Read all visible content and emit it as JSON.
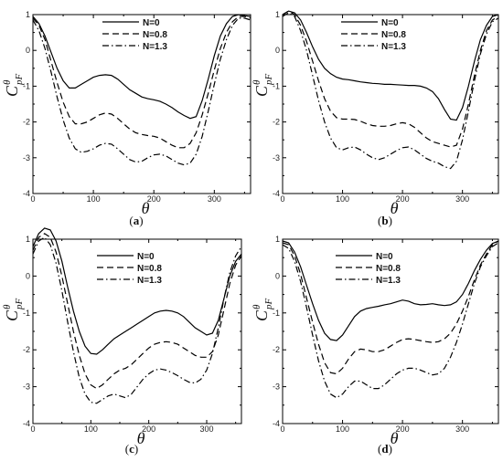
{
  "chart_data": [
    {
      "type": "line",
      "panel_label": "a",
      "xlabel": "θ",
      "ylabel": "C",
      "ylabel_superscript": "θ",
      "ylabel_subscript": "pF",
      "xlim": [
        0,
        360
      ],
      "ylim": [
        -4,
        1
      ],
      "xticks": [
        "0",
        "100",
        "200",
        "300"
      ],
      "yticks": [
        "1",
        "0",
        "-1",
        "-2",
        "-3",
        "-4"
      ],
      "legend_position": "top-center",
      "series": [
        {
          "name": "N=0",
          "style": "solid",
          "x": [
            0,
            10,
            20,
            30,
            40,
            50,
            60,
            70,
            80,
            90,
            100,
            110,
            120,
            130,
            140,
            150,
            160,
            170,
            180,
            190,
            200,
            210,
            220,
            230,
            240,
            250,
            260,
            270,
            280,
            290,
            300,
            310,
            320,
            330,
            340,
            350,
            360
          ],
          "y": [
            0.95,
            0.75,
            0.4,
            -0.05,
            -0.5,
            -0.85,
            -1.05,
            -1.05,
            -0.95,
            -0.85,
            -0.75,
            -0.7,
            -0.68,
            -0.7,
            -0.8,
            -0.95,
            -1.1,
            -1.2,
            -1.3,
            -1.35,
            -1.38,
            -1.42,
            -1.5,
            -1.6,
            -1.72,
            -1.82,
            -1.9,
            -1.85,
            -1.4,
            -0.8,
            -0.15,
            0.4,
            0.75,
            0.95,
            1.0,
            0.97,
            0.95
          ]
        },
        {
          "name": "N=0.8",
          "style": "dashed",
          "x": [
            0,
            10,
            20,
            30,
            40,
            50,
            60,
            70,
            80,
            90,
            100,
            110,
            120,
            130,
            140,
            150,
            160,
            170,
            180,
            190,
            200,
            210,
            220,
            230,
            240,
            250,
            260,
            270,
            280,
            290,
            300,
            310,
            320,
            330,
            340,
            350,
            360
          ],
          "y": [
            0.9,
            0.7,
            0.3,
            -0.3,
            -0.9,
            -1.45,
            -1.85,
            -2.05,
            -2.05,
            -2.0,
            -1.9,
            -1.8,
            -1.75,
            -1.78,
            -1.9,
            -2.05,
            -2.2,
            -2.3,
            -2.35,
            -2.38,
            -2.4,
            -2.45,
            -2.55,
            -2.65,
            -2.72,
            -2.72,
            -2.6,
            -2.3,
            -1.8,
            -1.2,
            -0.55,
            0.05,
            0.5,
            0.8,
            0.95,
            0.95,
            0.9
          ]
        },
        {
          "name": "N=1.3",
          "style": "dash-dot",
          "x": [
            0,
            10,
            20,
            30,
            40,
            50,
            60,
            70,
            80,
            90,
            100,
            110,
            120,
            130,
            140,
            150,
            160,
            170,
            180,
            190,
            200,
            210,
            220,
            230,
            240,
            250,
            260,
            270,
            280,
            290,
            300,
            310,
            320,
            330,
            340,
            350,
            360
          ],
          "y": [
            0.85,
            0.55,
            0.05,
            -0.6,
            -1.3,
            -1.95,
            -2.45,
            -2.75,
            -2.85,
            -2.82,
            -2.75,
            -2.65,
            -2.6,
            -2.62,
            -2.75,
            -2.9,
            -3.05,
            -3.12,
            -3.1,
            -3.0,
            -2.92,
            -2.9,
            -2.95,
            -3.05,
            -3.15,
            -3.2,
            -3.15,
            -2.9,
            -2.4,
            -1.7,
            -0.95,
            -0.25,
            0.3,
            0.7,
            0.9,
            0.9,
            0.85
          ]
        }
      ]
    },
    {
      "type": "line",
      "panel_label": "b",
      "xlabel": "θ",
      "ylabel": "C",
      "ylabel_superscript": "θ",
      "ylabel_subscript": "pF",
      "xlim": [
        0,
        360
      ],
      "ylim": [
        -4,
        1
      ],
      "xticks": [
        "0",
        "100",
        "200",
        "300"
      ],
      "yticks": [
        "1",
        "0",
        "-1",
        "-2",
        "-3",
        "-4"
      ],
      "legend_position": "top-right",
      "series": [
        {
          "name": "N=0",
          "style": "solid",
          "x": [
            0,
            10,
            20,
            30,
            40,
            50,
            60,
            70,
            80,
            90,
            100,
            110,
            120,
            130,
            140,
            150,
            160,
            170,
            180,
            190,
            200,
            210,
            220,
            230,
            240,
            250,
            260,
            270,
            280,
            290,
            300,
            310,
            320,
            330,
            340,
            350,
            360
          ],
          "y": [
            1.0,
            1.1,
            1.05,
            0.85,
            0.5,
            0.1,
            -0.25,
            -0.5,
            -0.65,
            -0.75,
            -0.8,
            -0.82,
            -0.85,
            -0.88,
            -0.9,
            -0.92,
            -0.93,
            -0.95,
            -0.95,
            -0.96,
            -0.97,
            -0.98,
            -0.98,
            -1.0,
            -1.05,
            -1.15,
            -1.35,
            -1.65,
            -1.92,
            -1.95,
            -1.6,
            -1.0,
            -0.3,
            0.3,
            0.7,
            0.95,
            1.0
          ]
        },
        {
          "name": "N=0.8",
          "style": "dashed",
          "x": [
            0,
            10,
            20,
            30,
            40,
            50,
            60,
            70,
            80,
            90,
            100,
            110,
            120,
            130,
            140,
            150,
            160,
            170,
            180,
            190,
            200,
            210,
            220,
            230,
            240,
            250,
            260,
            270,
            280,
            290,
            300,
            310,
            320,
            330,
            340,
            350,
            360
          ],
          "y": [
            1.0,
            1.1,
            1.0,
            0.7,
            0.25,
            -0.3,
            -0.85,
            -1.35,
            -1.7,
            -1.88,
            -1.92,
            -1.92,
            -1.93,
            -1.98,
            -2.05,
            -2.1,
            -2.12,
            -2.12,
            -2.1,
            -2.05,
            -2.02,
            -2.05,
            -2.15,
            -2.3,
            -2.45,
            -2.55,
            -2.6,
            -2.65,
            -2.7,
            -2.65,
            -2.2,
            -1.5,
            -0.7,
            0.0,
            0.55,
            0.85,
            0.95
          ]
        },
        {
          "name": "N=1.3",
          "style": "dash-dot",
          "x": [
            0,
            10,
            20,
            30,
            40,
            50,
            60,
            70,
            80,
            90,
            100,
            110,
            120,
            130,
            140,
            150,
            160,
            170,
            180,
            190,
            200,
            210,
            220,
            230,
            240,
            250,
            260,
            270,
            280,
            290,
            300,
            310,
            320,
            330,
            340,
            350,
            360
          ],
          "y": [
            0.95,
            1.05,
            0.95,
            0.55,
            0.0,
            -0.7,
            -1.4,
            -2.0,
            -2.45,
            -2.72,
            -2.78,
            -2.72,
            -2.7,
            -2.78,
            -2.9,
            -3.0,
            -3.05,
            -3.0,
            -2.9,
            -2.8,
            -2.72,
            -2.7,
            -2.78,
            -2.9,
            -3.02,
            -3.1,
            -3.15,
            -3.25,
            -3.3,
            -3.1,
            -2.5,
            -1.7,
            -0.85,
            -0.1,
            0.45,
            0.8,
            0.9
          ]
        }
      ]
    },
    {
      "type": "line",
      "panel_label": "c",
      "xlabel": "θ",
      "ylabel": "C",
      "ylabel_superscript": "θ",
      "ylabel_subscript": "pF",
      "xlim": [
        0,
        360
      ],
      "ylim": [
        -4,
        1
      ],
      "xticks": [
        "0",
        "100",
        "200",
        "300"
      ],
      "yticks": [
        "1",
        "0",
        "-1",
        "-2",
        "-3",
        "-4"
      ],
      "legend_position": "top-right",
      "series": [
        {
          "name": "N=0",
          "style": "solid",
          "x": [
            0,
            10,
            20,
            30,
            40,
            50,
            60,
            70,
            80,
            90,
            100,
            110,
            120,
            130,
            140,
            150,
            160,
            170,
            180,
            190,
            200,
            210,
            220,
            230,
            240,
            250,
            260,
            270,
            280,
            290,
            300,
            310,
            320,
            330,
            340,
            350,
            360
          ],
          "y": [
            0.8,
            1.15,
            1.3,
            1.25,
            0.95,
            0.4,
            -0.3,
            -0.95,
            -1.5,
            -1.9,
            -2.1,
            -2.12,
            -2.0,
            -1.85,
            -1.7,
            -1.6,
            -1.5,
            -1.4,
            -1.3,
            -1.2,
            -1.1,
            -1.0,
            -0.95,
            -0.93,
            -0.95,
            -1.0,
            -1.1,
            -1.25,
            -1.4,
            -1.5,
            -1.6,
            -1.55,
            -1.2,
            -0.6,
            0.0,
            0.4,
            0.6
          ]
        },
        {
          "name": "N=0.8",
          "style": "dashed",
          "x": [
            0,
            10,
            20,
            30,
            40,
            50,
            60,
            70,
            80,
            90,
            100,
            110,
            120,
            130,
            140,
            150,
            160,
            170,
            180,
            190,
            200,
            210,
            220,
            230,
            240,
            250,
            260,
            270,
            280,
            290,
            300,
            310,
            320,
            330,
            340,
            350,
            360
          ],
          "y": [
            0.7,
            1.05,
            1.15,
            1.05,
            0.65,
            0.0,
            -0.75,
            -1.5,
            -2.15,
            -2.65,
            -2.95,
            -3.05,
            -2.95,
            -2.8,
            -2.65,
            -2.55,
            -2.5,
            -2.4,
            -2.25,
            -2.1,
            -1.95,
            -1.85,
            -1.8,
            -1.78,
            -1.8,
            -1.85,
            -1.95,
            -2.05,
            -2.15,
            -2.2,
            -2.2,
            -2.05,
            -1.6,
            -0.9,
            -0.2,
            0.3,
            0.55
          ]
        },
        {
          "name": "N=1.3",
          "style": "dash-dot",
          "x": [
            0,
            10,
            20,
            30,
            40,
            50,
            60,
            70,
            80,
            90,
            100,
            110,
            120,
            130,
            140,
            150,
            160,
            170,
            180,
            190,
            200,
            210,
            220,
            230,
            240,
            250,
            260,
            270,
            280,
            290,
            300,
            310,
            320,
            330,
            340,
            350,
            360
          ],
          "y": [
            0.6,
            0.95,
            1.05,
            0.85,
            0.35,
            -0.4,
            -1.25,
            -2.05,
            -2.75,
            -3.2,
            -3.42,
            -3.45,
            -3.35,
            -3.25,
            -3.2,
            -3.25,
            -3.3,
            -3.2,
            -3.0,
            -2.8,
            -2.65,
            -2.55,
            -2.52,
            -2.55,
            -2.62,
            -2.7,
            -2.8,
            -2.88,
            -2.9,
            -2.8,
            -2.55,
            -2.1,
            -1.4,
            -0.6,
            0.1,
            0.55,
            0.8
          ]
        }
      ]
    },
    {
      "type": "line",
      "panel_label": "d",
      "xlabel": "θ",
      "ylabel": "C",
      "ylabel_superscript": "θ",
      "ylabel_subscript": "pF",
      "xlim": [
        0,
        360
      ],
      "ylim": [
        -4,
        1
      ],
      "xticks": [
        "0",
        "100",
        "200",
        "300"
      ],
      "yticks": [
        "1",
        "0",
        "-1",
        "-2",
        "-3",
        "-4"
      ],
      "legend_position": "top-center",
      "series": [
        {
          "name": "N=0",
          "style": "solid",
          "x": [
            0,
            10,
            20,
            30,
            40,
            50,
            60,
            70,
            80,
            90,
            100,
            110,
            120,
            130,
            140,
            150,
            160,
            170,
            180,
            190,
            200,
            210,
            220,
            230,
            240,
            250,
            260,
            270,
            280,
            290,
            300,
            310,
            320,
            330,
            340,
            350,
            360
          ],
          "y": [
            0.95,
            0.9,
            0.65,
            0.25,
            -0.25,
            -0.75,
            -1.2,
            -1.55,
            -1.72,
            -1.75,
            -1.6,
            -1.35,
            -1.1,
            -0.95,
            -0.88,
            -0.85,
            -0.82,
            -0.78,
            -0.75,
            -0.7,
            -0.65,
            -0.68,
            -0.75,
            -0.78,
            -0.77,
            -0.75,
            -0.78,
            -0.8,
            -0.78,
            -0.7,
            -0.5,
            -0.2,
            0.15,
            0.45,
            0.7,
            0.88,
            0.95
          ]
        },
        {
          "name": "N=0.8",
          "style": "dashed",
          "x": [
            0,
            10,
            20,
            30,
            40,
            50,
            60,
            70,
            80,
            90,
            100,
            110,
            120,
            130,
            140,
            150,
            160,
            170,
            180,
            190,
            200,
            210,
            220,
            230,
            240,
            250,
            260,
            270,
            280,
            290,
            300,
            310,
            320,
            330,
            340,
            350,
            360
          ],
          "y": [
            0.9,
            0.85,
            0.55,
            0.05,
            -0.6,
            -1.25,
            -1.85,
            -2.35,
            -2.62,
            -2.65,
            -2.5,
            -2.25,
            -2.05,
            -1.98,
            -2.0,
            -2.05,
            -2.05,
            -2.0,
            -1.9,
            -1.8,
            -1.72,
            -1.7,
            -1.72,
            -1.75,
            -1.78,
            -1.8,
            -1.78,
            -1.7,
            -1.55,
            -1.3,
            -0.95,
            -0.55,
            -0.1,
            0.3,
            0.6,
            0.85,
            0.95
          ]
        },
        {
          "name": "N=1.3",
          "style": "dash-dot",
          "x": [
            0,
            10,
            20,
            30,
            40,
            50,
            60,
            70,
            80,
            90,
            100,
            110,
            120,
            130,
            140,
            150,
            160,
            170,
            180,
            190,
            200,
            210,
            220,
            230,
            240,
            250,
            260,
            270,
            280,
            290,
            300,
            310,
            320,
            330,
            340,
            350,
            360
          ],
          "y": [
            0.85,
            0.75,
            0.4,
            -0.15,
            -0.85,
            -1.6,
            -2.3,
            -2.85,
            -3.2,
            -3.3,
            -3.2,
            -3.0,
            -2.85,
            -2.85,
            -2.95,
            -3.05,
            -3.05,
            -2.95,
            -2.8,
            -2.65,
            -2.55,
            -2.5,
            -2.5,
            -2.55,
            -2.62,
            -2.68,
            -2.65,
            -2.5,
            -2.2,
            -1.8,
            -1.3,
            -0.75,
            -0.2,
            0.25,
            0.55,
            0.8,
            0.9
          ]
        }
      ]
    }
  ]
}
